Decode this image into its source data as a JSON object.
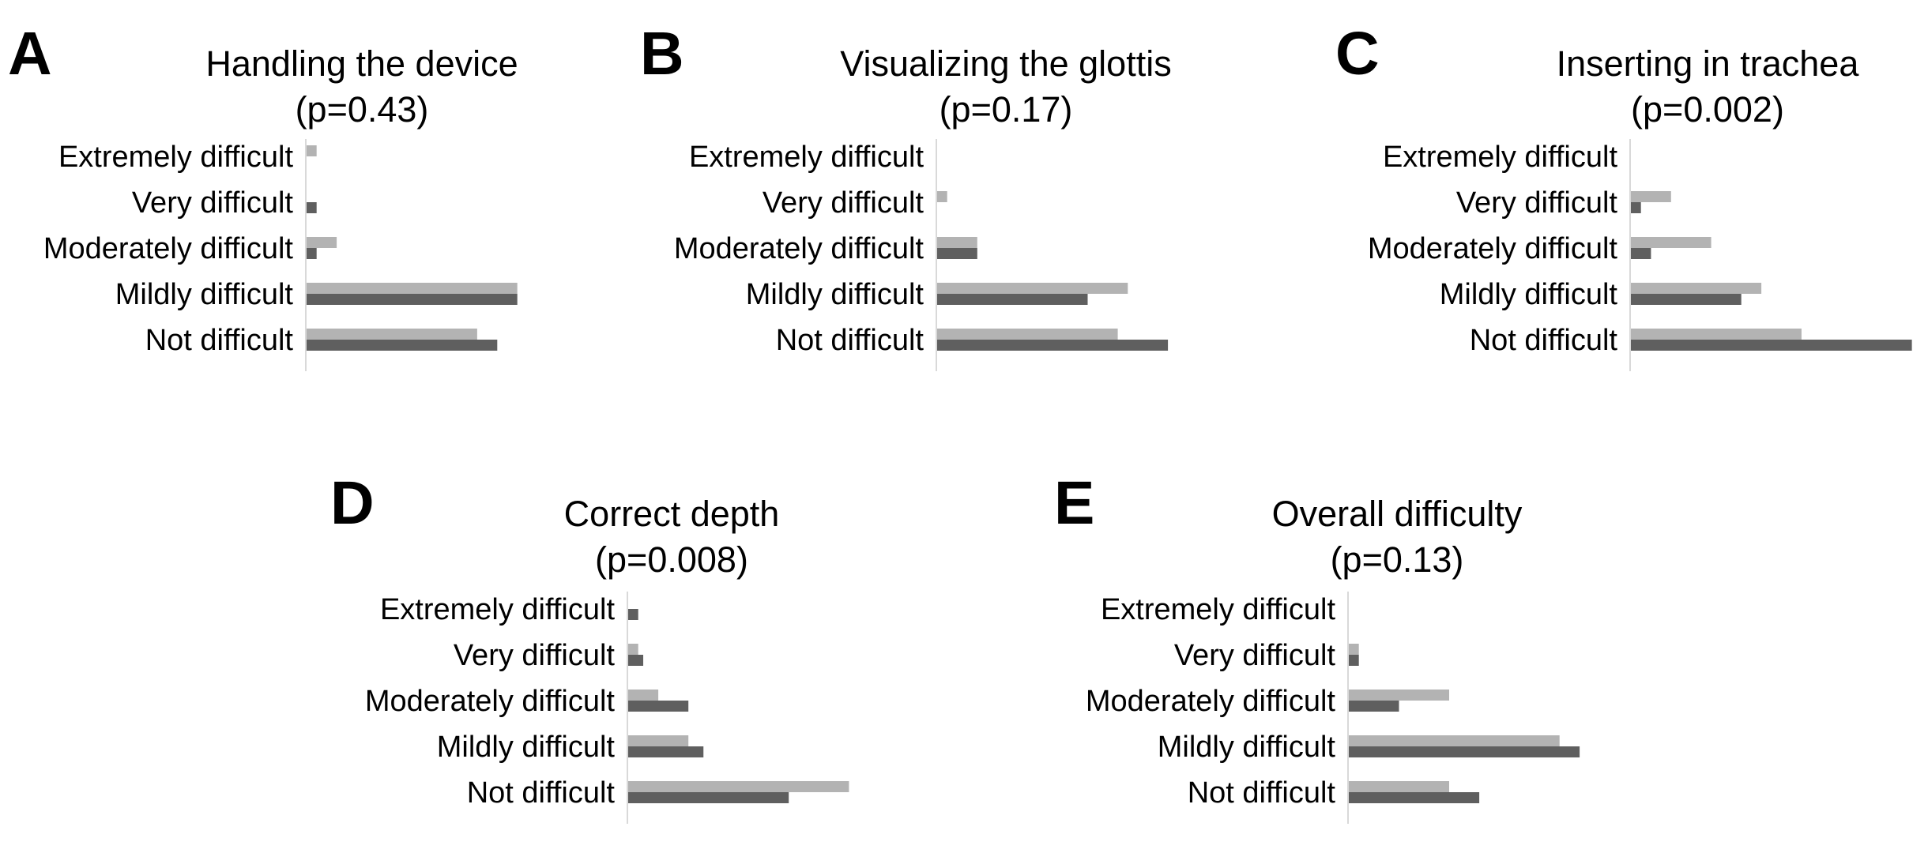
{
  "colors": {
    "series_light": "#b3b3b3",
    "series_dark": "#5f5f5f",
    "axis": "#d9d9d9"
  },
  "chart_data": [
    {
      "type": "bar",
      "orientation": "horizontal",
      "panel": "A",
      "title": [
        "Handling the device",
        "(p=0.43)"
      ],
      "categories": [
        "Extremely difficult",
        "Very difficult",
        "Moderately difficult",
        "Mildly difficult",
        "Not difficult"
      ],
      "series": [
        {
          "color": "#b3b3b3",
          "values": [
            1,
            0,
            3,
            21,
            17
          ]
        },
        {
          "color": "#5f5f5f",
          "values": [
            0,
            1,
            1,
            21,
            19
          ]
        }
      ],
      "xlim": [
        0,
        28
      ]
    },
    {
      "type": "bar",
      "orientation": "horizontal",
      "panel": "B",
      "title": [
        "Visualizing the glottis",
        "(p=0.17)"
      ],
      "categories": [
        "Extremely difficult",
        "Very difficult",
        "Moderately difficult",
        "Mildly difficult",
        "Not difficult"
      ],
      "series": [
        {
          "color": "#b3b3b3",
          "values": [
            0,
            1,
            4,
            19,
            18
          ]
        },
        {
          "color": "#5f5f5f",
          "values": [
            0,
            0,
            4,
            15,
            23
          ]
        }
      ],
      "xlim": [
        0,
        28
      ]
    },
    {
      "type": "bar",
      "orientation": "horizontal",
      "panel": "C",
      "title": [
        "Inserting in trachea",
        "(p=0.002)"
      ],
      "categories": [
        "Extremely difficult",
        "Very difficult",
        "Moderately difficult",
        "Mildly difficult",
        "Not difficult"
      ],
      "series": [
        {
          "color": "#b3b3b3",
          "values": [
            0,
            4,
            8,
            13,
            17
          ]
        },
        {
          "color": "#5f5f5f",
          "values": [
            0,
            1,
            2,
            11,
            28
          ]
        }
      ],
      "xlim": [
        0,
        28
      ]
    },
    {
      "type": "bar",
      "orientation": "horizontal",
      "panel": "D",
      "title": [
        "Correct depth",
        "(p=0.008)"
      ],
      "categories": [
        "Extremely difficult",
        "Very difficult",
        "Moderately difficult",
        "Mildly difficult",
        "Not difficult"
      ],
      "series": [
        {
          "color": "#b3b3b3",
          "values": [
            0,
            1,
            3,
            6,
            22
          ]
        },
        {
          "color": "#5f5f5f",
          "values": [
            1,
            1.5,
            6,
            7.5,
            16
          ]
        }
      ],
      "xlim": [
        0,
        28
      ]
    },
    {
      "type": "bar",
      "orientation": "horizontal",
      "panel": "E",
      "title": [
        "Overall difficulty",
        "(p=0.13)"
      ],
      "categories": [
        "Extremely difficult",
        "Very difficult",
        "Moderately difficult",
        "Mildly difficult",
        "Not difficult"
      ],
      "series": [
        {
          "color": "#b3b3b3",
          "values": [
            0,
            1,
            10,
            21,
            10
          ]
        },
        {
          "color": "#5f5f5f",
          "values": [
            0,
            1,
            5,
            23,
            13
          ]
        }
      ],
      "xlim": [
        0,
        28
      ]
    }
  ]
}
